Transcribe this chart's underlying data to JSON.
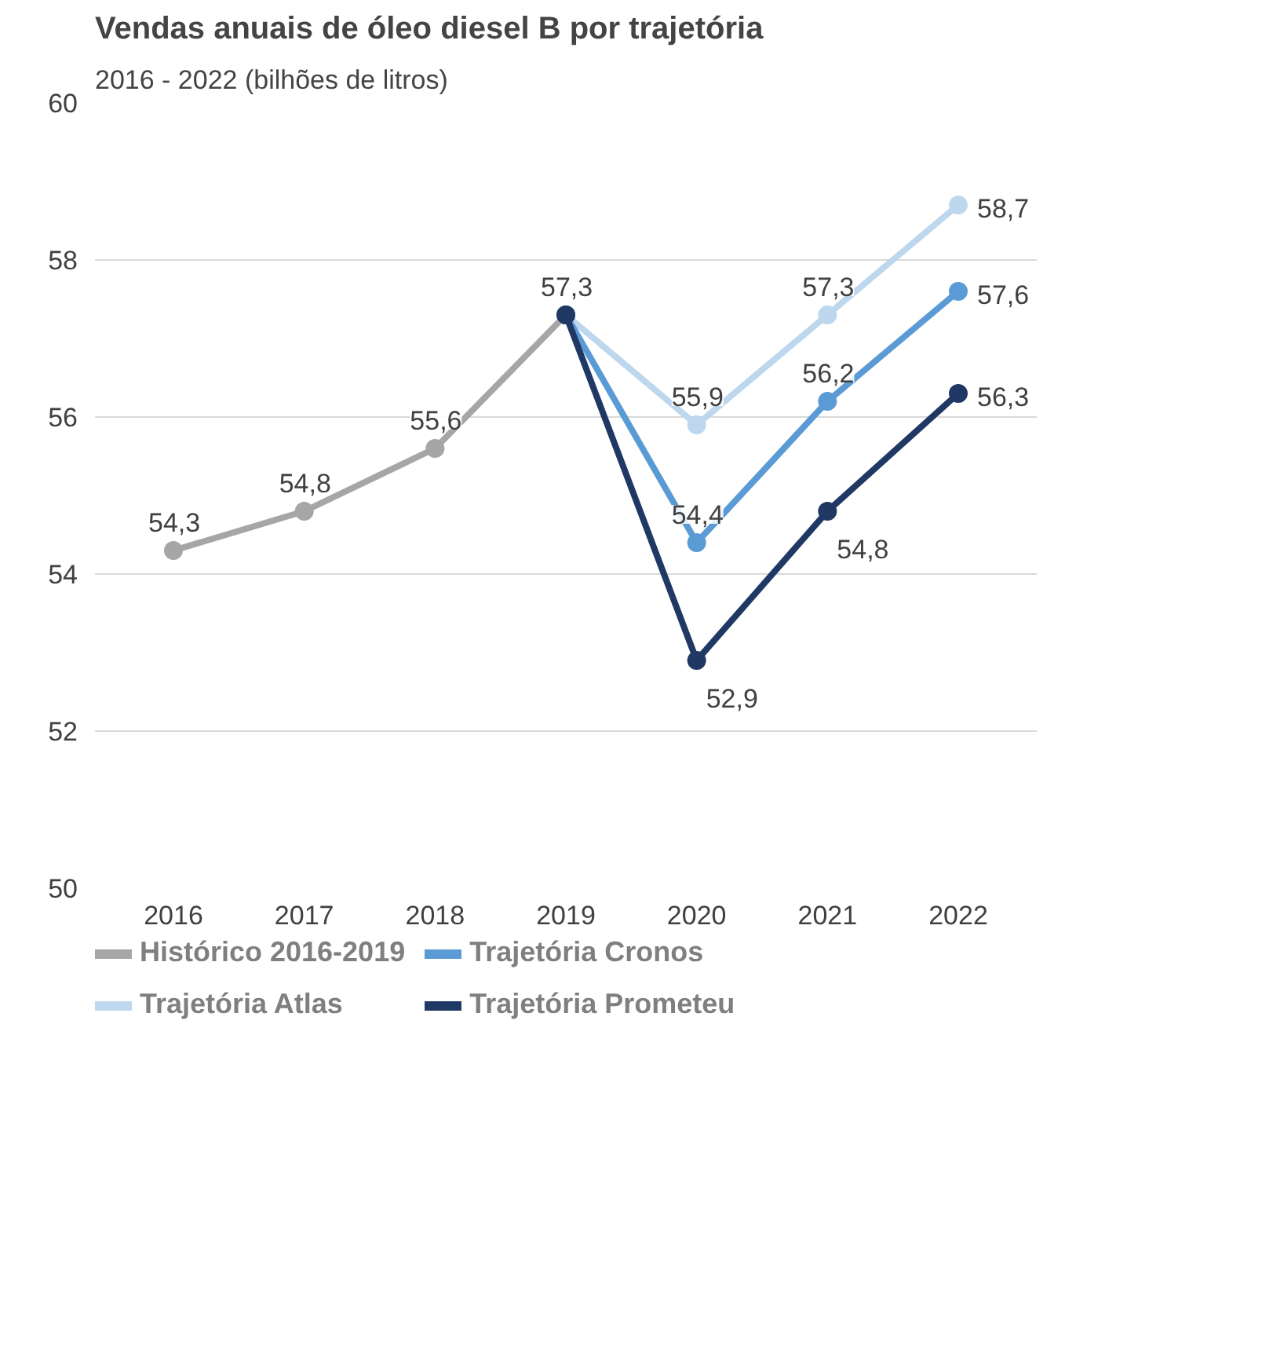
{
  "chart_data": {
    "type": "line",
    "title": "Vendas anuais de óleo diesel B por trajetória",
    "subtitle": "2016 - 2022 (bilhões de litros)",
    "categories": [
      "2016",
      "2017",
      "2018",
      "2019",
      "2020",
      "2021",
      "2022"
    ],
    "series": [
      {
        "name": "Histórico 2016-2019",
        "color": "#a6a6a6",
        "values": [
          54.3,
          54.8,
          55.6,
          57.3,
          null,
          null,
          null
        ],
        "value_labels": [
          "54,3",
          "54,8",
          "55,6",
          "57,3",
          null,
          null,
          null
        ]
      },
      {
        "name": "Trajetória Atlas",
        "color": "#bdd7ee",
        "values": [
          null,
          null,
          null,
          57.3,
          55.9,
          57.3,
          58.7
        ],
        "value_labels": [
          null,
          null,
          null,
          null,
          "55,9",
          "57,3",
          "58,7"
        ]
      },
      {
        "name": "Trajetória Cronos",
        "color": "#5b9bd5",
        "values": [
          null,
          null,
          null,
          57.3,
          54.4,
          56.2,
          57.6
        ],
        "value_labels": [
          null,
          null,
          null,
          null,
          "54,4",
          "56,2",
          "57,6"
        ]
      },
      {
        "name": "Trajetória Prometeu",
        "color": "#203864",
        "values": [
          null,
          null,
          null,
          57.3,
          52.9,
          54.8,
          56.3
        ],
        "value_labels": [
          null,
          null,
          null,
          null,
          "52,9",
          "54,8",
          "56,3"
        ]
      }
    ],
    "ylim": [
      50,
      60
    ],
    "yticks": [
      50,
      52,
      54,
      56,
      58,
      60
    ],
    "grid": "y",
    "legend": "bottom",
    "marker": "circle",
    "line_style": "solid"
  }
}
